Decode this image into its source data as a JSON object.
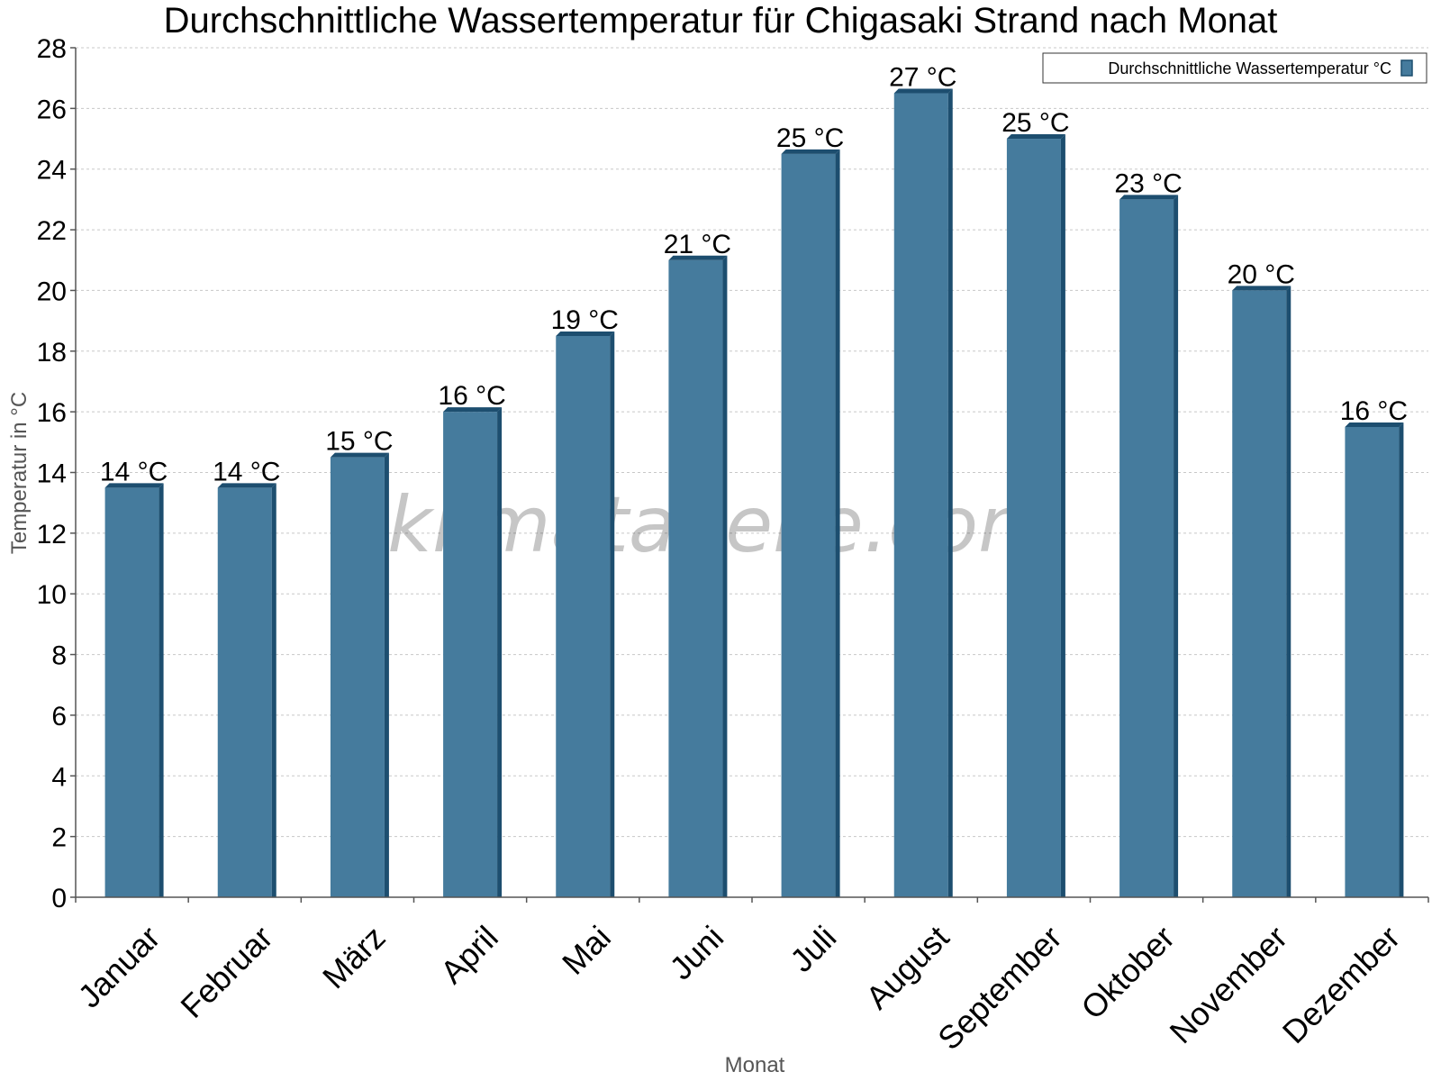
{
  "chart_data": {
    "type": "bar",
    "title": "Durchschnittliche Wassertemperatur für Chigasaki Strand nach Monat",
    "xlabel": "Monat",
    "ylabel": "Temperatur in °C",
    "categories": [
      "Januar",
      "Februar",
      "März",
      "April",
      "Mai",
      "Juni",
      "Juli",
      "August",
      "September",
      "Oktober",
      "November",
      "Dezember"
    ],
    "series": [
      {
        "name": "Durchschnittliche Wassertemperatur °C",
        "values": [
          13.5,
          13.5,
          14.5,
          16.0,
          18.5,
          21.0,
          24.5,
          26.5,
          25.0,
          23.0,
          20.0,
          15.5
        ],
        "labels": [
          "14 °C",
          "14 °C",
          "15 °C",
          "16 °C",
          "19 °C",
          "21 °C",
          "25 °C",
          "27 °C",
          "25 °C",
          "23 °C",
          "20 °C",
          "16 °C"
        ],
        "color": "#457b9d"
      }
    ],
    "ylim": [
      0,
      28
    ],
    "yticks": [
      0,
      2,
      4,
      6,
      8,
      10,
      12,
      14,
      16,
      18,
      20,
      22,
      24,
      26,
      28
    ],
    "grid": true,
    "legend_position": "top-right"
  },
  "watermark": "klimatabelle.com",
  "colors": {
    "bar": "#457b9d",
    "bar_dark": "#1d4e6f",
    "grid": "#c8c8c8",
    "axis": "#555555"
  }
}
